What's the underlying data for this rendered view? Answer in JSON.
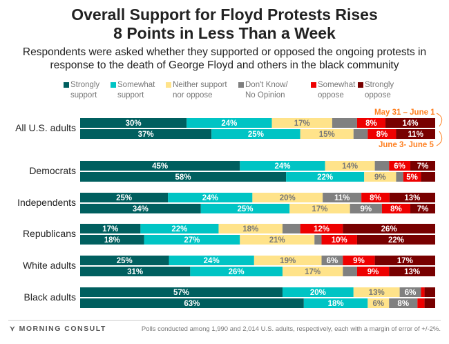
{
  "chart_data": {
    "type": "bar",
    "orientation": "horizontal",
    "stacked": true,
    "title": "Overall Support for Floyd Protests Rises 8 Points in Less Than a Week",
    "title_lines": [
      "Overall Support for Floyd Protests Rises",
      "8 Points in Less Than a Week"
    ],
    "subtitle_lines": [
      "Respondents were asked whether they supported or opposed the ongoing protests in",
      "response to the death of George Floyd and others in the black community"
    ],
    "xlim": [
      0,
      100
    ],
    "legend_placement": "top",
    "series": [
      {
        "name": "Strongly support",
        "legend_lines": [
          "Strongly",
          "support"
        ],
        "color": "#005f5f",
        "label_color": "#ffffff"
      },
      {
        "name": "Somewhat support",
        "legend_lines": [
          "Somewhat",
          "support"
        ],
        "color": "#00c4c4",
        "label_color": "#ffffff"
      },
      {
        "name": "Neither support nor oppose",
        "legend_lines": [
          "Neither support",
          "nor oppose"
        ],
        "color": "#ffe38a",
        "label_color": "#777777"
      },
      {
        "name": "Don't Know/ No Opinion",
        "legend_lines": [
          "Don't Know/",
          "No Opinion"
        ],
        "color": "#808080",
        "label_color": "#ffffff"
      },
      {
        "name": "Somewhat oppose",
        "legend_lines": [
          "Somewhat",
          "oppose"
        ],
        "color": "#ee0000",
        "label_color": "#ffffff"
      },
      {
        "name": "Strongly oppose",
        "legend_lines": [
          "Strongly",
          "oppose"
        ],
        "color": "#780000",
        "label_color": "#ffffff"
      }
    ],
    "periods": [
      "May 31 – June 1",
      "June 3- June 5"
    ],
    "categories": [
      "All U.S. adults",
      "Democrats",
      "Independents",
      "Republicans",
      "White adults",
      "Black adults"
    ],
    "values": [
      [
        [
          30,
          24,
          17,
          7,
          8,
          14
        ],
        [
          37,
          25,
          15,
          4,
          8,
          11
        ]
      ],
      [
        [
          45,
          24,
          14,
          4,
          6,
          7
        ],
        [
          58,
          22,
          9,
          2,
          5,
          4
        ]
      ],
      [
        [
          25,
          24,
          20,
          11,
          8,
          13
        ],
        [
          34,
          25,
          17,
          9,
          8,
          7
        ]
      ],
      [
        [
          17,
          22,
          18,
          5,
          12,
          26
        ],
        [
          18,
          27,
          21,
          2,
          10,
          22
        ]
      ],
      [
        [
          25,
          24,
          19,
          6,
          9,
          17
        ],
        [
          31,
          26,
          17,
          4,
          9,
          13
        ]
      ],
      [
        [
          57,
          20,
          13,
          6,
          1,
          3
        ],
        [
          63,
          18,
          6,
          8,
          2,
          3
        ]
      ]
    ],
    "labeled": [
      [
        [
          1,
          1,
          1,
          0,
          1,
          1
        ],
        [
          1,
          1,
          1,
          0,
          1,
          1
        ]
      ],
      [
        [
          1,
          1,
          1,
          0,
          1,
          1
        ],
        [
          1,
          1,
          1,
          0,
          1,
          0
        ]
      ],
      [
        [
          1,
          1,
          1,
          1,
          1,
          1
        ],
        [
          1,
          1,
          1,
          1,
          1,
          1
        ]
      ],
      [
        [
          1,
          1,
          1,
          0,
          1,
          1
        ],
        [
          1,
          1,
          1,
          0,
          1,
          1
        ]
      ],
      [
        [
          1,
          1,
          1,
          1,
          1,
          1
        ],
        [
          1,
          1,
          1,
          0,
          1,
          1
        ]
      ],
      [
        [
          1,
          1,
          1,
          1,
          0,
          0
        ],
        [
          1,
          1,
          1,
          1,
          0,
          0
        ]
      ]
    ]
  },
  "footer": {
    "brand": "MORNING CONSULT",
    "note": "Polls conducted among 1,990 and 2,014 U.S. adults, respectively, each with a margin of error of +/-2%."
  },
  "annotation_color": "#ff7f1f"
}
